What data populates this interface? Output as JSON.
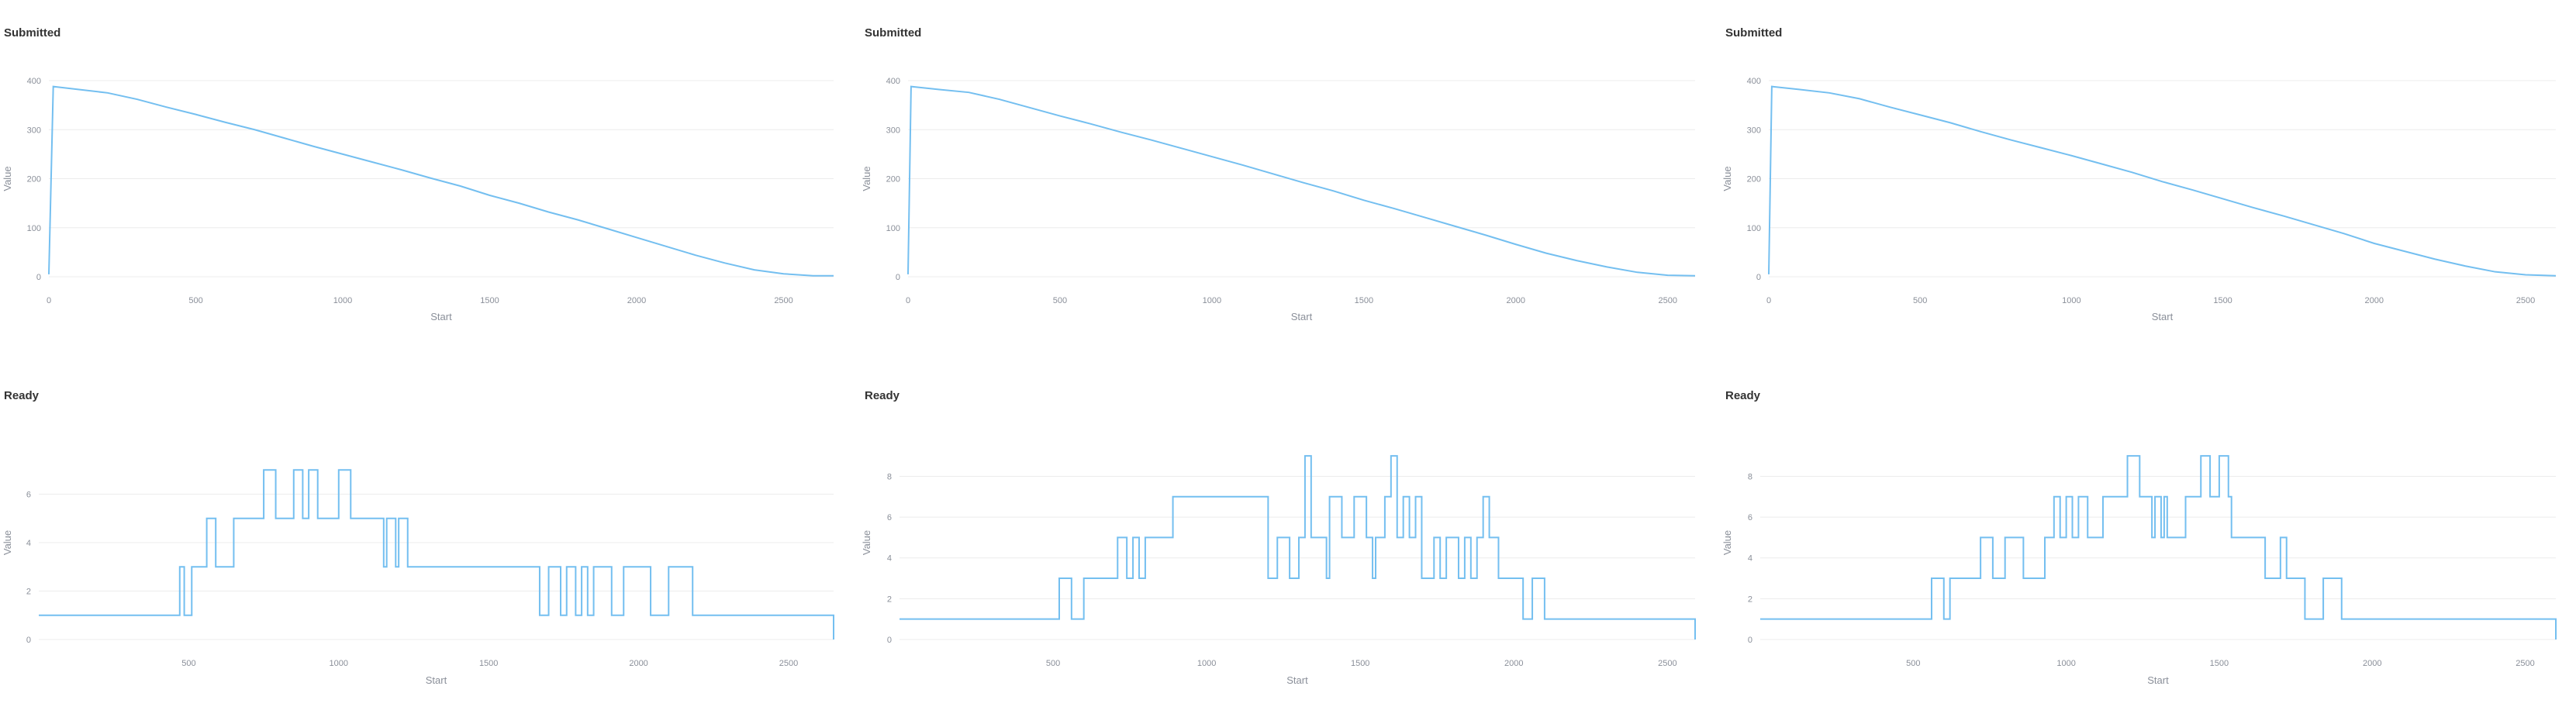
{
  "colors": {
    "series": "#74bff0",
    "grid": "#ececec",
    "tick": "#8a8f99",
    "title": "#333333"
  },
  "chart_data": [
    {
      "title": "Submitted",
      "type": "line",
      "xlabel": "Start",
      "ylabel": "Value",
      "xlim": [
        0,
        2670
      ],
      "ylim": [
        0,
        400
      ],
      "xticks": [
        0,
        500,
        1000,
        1500,
        2000,
        2500
      ],
      "yticks": [
        0,
        100,
        200,
        300,
        400
      ],
      "grid": true,
      "x": [
        0,
        15,
        100,
        200,
        300,
        400,
        500,
        600,
        700,
        800,
        900,
        1000,
        1100,
        1200,
        1300,
        1400,
        1500,
        1600,
        1700,
        1800,
        1900,
        2000,
        2100,
        2200,
        2300,
        2400,
        2500,
        2600,
        2670
      ],
      "y": [
        5,
        388,
        382,
        375,
        362,
        346,
        331,
        315,
        300,
        283,
        266,
        250,
        234,
        218,
        201,
        185,
        166,
        150,
        132,
        116,
        98,
        80,
        62,
        44,
        28,
        14,
        6,
        2,
        2
      ]
    },
    {
      "title": "Submitted",
      "type": "line",
      "xlabel": "Start",
      "ylabel": "Value",
      "xlim": [
        0,
        2590
      ],
      "ylim": [
        0,
        400
      ],
      "xticks": [
        0,
        500,
        1000,
        1500,
        2000,
        2500
      ],
      "yticks": [
        0,
        100,
        200,
        300,
        400
      ],
      "grid": true,
      "x": [
        0,
        10,
        100,
        200,
        300,
        400,
        500,
        600,
        700,
        800,
        900,
        1000,
        1100,
        1200,
        1300,
        1400,
        1500,
        1600,
        1700,
        1800,
        1900,
        2000,
        2100,
        2200,
        2300,
        2400,
        2500,
        2590
      ],
      "y": [
        5,
        388,
        382,
        376,
        362,
        345,
        328,
        312,
        295,
        279,
        262,
        245,
        228,
        210,
        192,
        175,
        156,
        139,
        121,
        103,
        85,
        66,
        48,
        33,
        20,
        9,
        3,
        2
      ]
    },
    {
      "title": "Submitted",
      "type": "line",
      "xlabel": "Start",
      "ylabel": "Value",
      "xlim": [
        0,
        2600
      ],
      "ylim": [
        0,
        400
      ],
      "xticks": [
        0,
        500,
        1000,
        1500,
        2000,
        2500
      ],
      "yticks": [
        0,
        100,
        200,
        300,
        400
      ],
      "grid": true,
      "x": [
        0,
        10,
        100,
        200,
        300,
        400,
        500,
        600,
        700,
        800,
        900,
        1000,
        1100,
        1200,
        1300,
        1400,
        1500,
        1600,
        1700,
        1800,
        1900,
        2000,
        2100,
        2200,
        2300,
        2400,
        2500,
        2600
      ],
      "y": [
        5,
        388,
        382,
        375,
        363,
        346,
        330,
        314,
        296,
        279,
        263,
        247,
        230,
        213,
        194,
        177,
        159,
        141,
        124,
        106,
        88,
        68,
        52,
        36,
        22,
        10,
        4,
        2
      ]
    },
    {
      "title": "Ready",
      "type": "step",
      "xlabel": "Start",
      "ylabel": "Value",
      "xlim": [
        0,
        2650
      ],
      "ylim": [
        0,
        8
      ],
      "xticks": [
        500,
        1000,
        1500,
        2000,
        2500
      ],
      "yticks": [
        0,
        2,
        4,
        6
      ],
      "grid": true,
      "x": [
        0,
        470,
        485,
        510,
        560,
        590,
        650,
        750,
        790,
        850,
        880,
        900,
        930,
        1000,
        1040,
        1140,
        1150,
        1160,
        1190,
        1200,
        1230,
        1650,
        1670,
        1700,
        1720,
        1740,
        1760,
        1790,
        1810,
        1830,
        1850,
        1890,
        1910,
        1950,
        2020,
        2040,
        2100,
        2170,
        2180,
        2650
      ],
      "y": [
        1,
        3,
        1,
        3,
        5,
        3,
        5,
        7,
        5,
        7,
        5,
        7,
        5,
        7,
        5,
        5,
        3,
        5,
        3,
        5,
        3,
        3,
        1,
        3,
        3,
        1,
        3,
        1,
        3,
        1,
        3,
        3,
        1,
        3,
        3,
        1,
        3,
        3,
        1,
        1
      ]
    },
    {
      "title": "Ready",
      "type": "step",
      "xlabel": "Start",
      "ylabel": "Value",
      "xlim": [
        0,
        2590
      ],
      "ylim": [
        0,
        9.5
      ],
      "xticks": [
        500,
        1000,
        1500,
        2000,
        2500
      ],
      "yticks": [
        0,
        2,
        4,
        6,
        8
      ],
      "grid": true,
      "x": [
        0,
        520,
        560,
        600,
        700,
        710,
        740,
        760,
        780,
        800,
        890,
        1050,
        1150,
        1200,
        1230,
        1270,
        1300,
        1320,
        1340,
        1360,
        1390,
        1400,
        1440,
        1480,
        1520,
        1540,
        1550,
        1580,
        1600,
        1620,
        1640,
        1660,
        1680,
        1700,
        1740,
        1760,
        1780,
        1800,
        1820,
        1840,
        1860,
        1880,
        1900,
        1920,
        1950,
        2010,
        2030,
        2060,
        2100,
        2590
      ],
      "y": [
        1,
        3,
        1,
        3,
        3,
        5,
        3,
        5,
        3,
        5,
        7,
        7,
        7,
        3,
        5,
        3,
        5,
        9,
        5,
        5,
        3,
        7,
        5,
        7,
        5,
        3,
        5,
        7,
        9,
        5,
        7,
        5,
        7,
        3,
        5,
        3,
        5,
        5,
        3,
        5,
        3,
        5,
        7,
        5,
        3,
        3,
        1,
        3,
        1,
        1
      ]
    },
    {
      "title": "Ready",
      "type": "step",
      "xlabel": "Start",
      "ylabel": "Value",
      "xlim": [
        0,
        2600
      ],
      "ylim": [
        0,
        9.5
      ],
      "xticks": [
        500,
        1000,
        1500,
        2000,
        2500
      ],
      "yticks": [
        0,
        2,
        4,
        6,
        8
      ],
      "grid": true,
      "x": [
        0,
        560,
        600,
        620,
        720,
        760,
        800,
        860,
        930,
        960,
        980,
        1000,
        1020,
        1040,
        1070,
        1120,
        1200,
        1240,
        1280,
        1290,
        1310,
        1320,
        1330,
        1360,
        1390,
        1440,
        1470,
        1500,
        1530,
        1540,
        1560,
        1580,
        1650,
        1700,
        1720,
        1780,
        1800,
        1840,
        1900,
        1930,
        2600
      ],
      "y": [
        1,
        3,
        1,
        3,
        5,
        3,
        5,
        3,
        5,
        7,
        5,
        7,
        5,
        7,
        5,
        7,
        9,
        7,
        5,
        7,
        5,
        7,
        5,
        5,
        7,
        9,
        7,
        9,
        7,
        5,
        5,
        5,
        3,
        5,
        3,
        1,
        1,
        3,
        1,
        1,
        1
      ]
    }
  ]
}
